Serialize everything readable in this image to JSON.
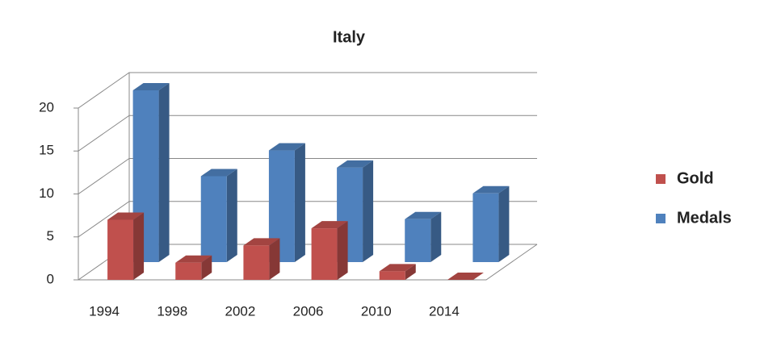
{
  "chart_data": {
    "type": "bar3d",
    "title": "Italy",
    "categories": [
      "1994",
      "1998",
      "2002",
      "2006",
      "2010",
      "2014"
    ],
    "series": [
      {
        "name": "Gold",
        "color": "#c0504d",
        "values": [
          7,
          2,
          4,
          6,
          1,
          0
        ]
      },
      {
        "name": "Medals",
        "color": "#4f81bd",
        "values": [
          20,
          10,
          13,
          11,
          5,
          8
        ]
      }
    ],
    "ylim": [
      0,
      20
    ],
    "yticks": [
      0,
      5,
      10,
      15,
      20
    ],
    "grid": true,
    "legend": "right"
  }
}
